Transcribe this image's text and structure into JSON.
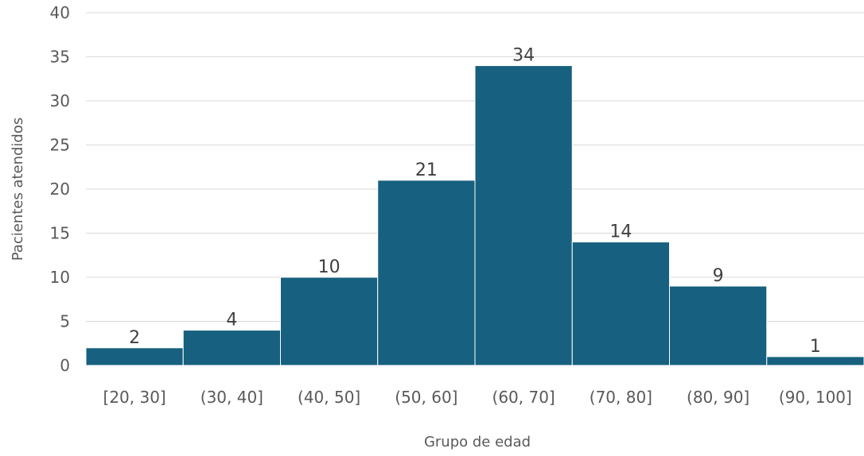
{
  "chart_data": {
    "type": "bar",
    "categories": [
      "[20, 30]",
      "(30, 40]",
      "(40, 50]",
      "(50, 60]",
      "(60, 70]",
      "(70, 80]",
      "(80, 90]",
      "(90, 100]"
    ],
    "values": [
      2,
      4,
      10,
      21,
      34,
      14,
      9,
      1
    ],
    "title": "",
    "xlabel": "Grupo de edad",
    "ylabel": "Pacientes atendidos",
    "ylim": [
      0,
      40
    ],
    "yticks": [
      0,
      5,
      10,
      15,
      20,
      25,
      30,
      35,
      40
    ],
    "grid": true,
    "legend": "none",
    "bar_color": "#17607f",
    "data_labels": true
  }
}
